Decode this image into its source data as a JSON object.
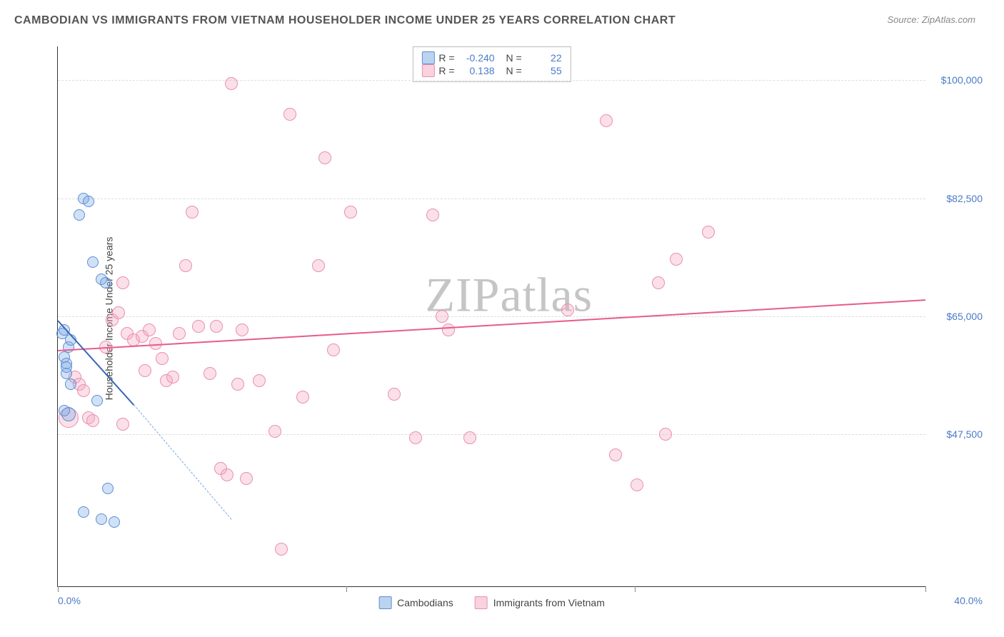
{
  "title": "CAMBODIAN VS IMMIGRANTS FROM VIETNAM HOUSEHOLDER INCOME UNDER 25 YEARS CORRELATION CHART",
  "source": "Source: ZipAtlas.com",
  "watermark": {
    "part1": "ZIP",
    "part2": "atlas"
  },
  "chart": {
    "type": "scatter",
    "ylabel": "Householder Income Under 25 years",
    "xlim": [
      0,
      40
    ],
    "ylim": [
      25000,
      105000
    ],
    "xtick_labels": {
      "min": "0.0%",
      "max": "40.0%"
    },
    "ytick_labels": [
      "$47,500",
      "$65,000",
      "$82,500",
      "$100,000"
    ],
    "ytick_values": [
      47500,
      65000,
      82500,
      100000
    ],
    "vtick_positions": [
      0,
      13.3,
      26.6,
      40
    ],
    "grid_color": "#dddddd",
    "background_color": "#ffffff",
    "axis_color": "#333333",
    "label_color": "#4a7bc8",
    "series": {
      "blue": {
        "label": "Cambodians",
        "fill": "rgba(122,168,226,0.35)",
        "stroke": "#5b8dd6",
        "trend_color": "#3966b8",
        "R": "-0.240",
        "N": "22",
        "trend": {
          "x1": 0,
          "y1": 64500,
          "x2": 3.5,
          "y2": 52000,
          "x2_ext": 8,
          "y2_ext": 35000
        },
        "points": [
          {
            "x": 0.2,
            "y": 62500,
            "r": 8
          },
          {
            "x": 0.3,
            "y": 59000,
            "r": 8
          },
          {
            "x": 0.4,
            "y": 58000,
            "r": 8
          },
          {
            "x": 0.4,
            "y": 56500,
            "r": 8
          },
          {
            "x": 0.6,
            "y": 55000,
            "r": 8
          },
          {
            "x": 0.5,
            "y": 50500,
            "r": 10
          },
          {
            "x": 1.2,
            "y": 82500,
            "r": 8
          },
          {
            "x": 1.4,
            "y": 82000,
            "r": 8
          },
          {
            "x": 1.0,
            "y": 80000,
            "r": 8
          },
          {
            "x": 1.6,
            "y": 73000,
            "r": 8
          },
          {
            "x": 2.0,
            "y": 70500,
            "r": 8
          },
          {
            "x": 2.2,
            "y": 70000,
            "r": 8
          },
          {
            "x": 1.8,
            "y": 52500,
            "r": 8
          },
          {
            "x": 0.5,
            "y": 60500,
            "r": 8
          },
          {
            "x": 2.3,
            "y": 39500,
            "r": 8
          },
          {
            "x": 1.2,
            "y": 36000,
            "r": 8
          },
          {
            "x": 2.0,
            "y": 35000,
            "r": 8
          },
          {
            "x": 2.6,
            "y": 34500,
            "r": 8
          },
          {
            "x": 0.3,
            "y": 51000,
            "r": 8
          },
          {
            "x": 0.6,
            "y": 61500,
            "r": 8
          },
          {
            "x": 0.4,
            "y": 57500,
            "r": 8
          },
          {
            "x": 0.3,
            "y": 63000,
            "r": 8
          }
        ]
      },
      "pink": {
        "label": "Immigrants from Vietnam",
        "fill": "rgba(244,166,188,0.35)",
        "stroke": "#ea8fb0",
        "trend_color": "#e85a8f",
        "R": "0.138",
        "N": "55",
        "trend": {
          "x1": 0,
          "y1": 60000,
          "x2": 40,
          "y2": 67500
        },
        "points": [
          {
            "x": 0.5,
            "y": 50000,
            "r": 14
          },
          {
            "x": 0.8,
            "y": 56000,
            "r": 9
          },
          {
            "x": 1.0,
            "y": 55000,
            "r": 9
          },
          {
            "x": 1.2,
            "y": 54000,
            "r": 9
          },
          {
            "x": 1.4,
            "y": 50000,
            "r": 9
          },
          {
            "x": 1.6,
            "y": 49500,
            "r": 9
          },
          {
            "x": 2.5,
            "y": 64500,
            "r": 9
          },
          {
            "x": 2.8,
            "y": 65500,
            "r": 9
          },
          {
            "x": 3.0,
            "y": 70000,
            "r": 9
          },
          {
            "x": 3.2,
            "y": 62500,
            "r": 9
          },
          {
            "x": 3.5,
            "y": 61500,
            "r": 9
          },
          {
            "x": 3.9,
            "y": 62000,
            "r": 9
          },
          {
            "x": 4.2,
            "y": 63000,
            "r": 9
          },
          {
            "x": 4.5,
            "y": 61000,
            "r": 9
          },
          {
            "x": 4.8,
            "y": 58800,
            "r": 9
          },
          {
            "x": 5.0,
            "y": 55500,
            "r": 9
          },
          {
            "x": 5.3,
            "y": 56000,
            "r": 9
          },
          {
            "x": 5.6,
            "y": 62500,
            "r": 9
          },
          {
            "x": 5.9,
            "y": 72500,
            "r": 9
          },
          {
            "x": 6.2,
            "y": 80500,
            "r": 9
          },
          {
            "x": 6.5,
            "y": 63500,
            "r": 9
          },
          {
            "x": 7.0,
            "y": 56500,
            "r": 9
          },
          {
            "x": 7.3,
            "y": 63500,
            "r": 9
          },
          {
            "x": 7.5,
            "y": 42500,
            "r": 9
          },
          {
            "x": 7.8,
            "y": 41500,
            "r": 9
          },
          {
            "x": 8.0,
            "y": 99500,
            "r": 9
          },
          {
            "x": 8.3,
            "y": 55000,
            "r": 9
          },
          {
            "x": 8.7,
            "y": 41000,
            "r": 9
          },
          {
            "x": 8.5,
            "y": 63000,
            "r": 9
          },
          {
            "x": 9.3,
            "y": 55500,
            "r": 9
          },
          {
            "x": 10.0,
            "y": 48000,
            "r": 9
          },
          {
            "x": 10.3,
            "y": 30500,
            "r": 9
          },
          {
            "x": 10.7,
            "y": 95000,
            "r": 9
          },
          {
            "x": 11.3,
            "y": 53000,
            "r": 9
          },
          {
            "x": 12.0,
            "y": 72500,
            "r": 9
          },
          {
            "x": 12.3,
            "y": 88500,
            "r": 9
          },
          {
            "x": 12.7,
            "y": 60000,
            "r": 9
          },
          {
            "x": 13.5,
            "y": 80500,
            "r": 9
          },
          {
            "x": 15.5,
            "y": 53500,
            "r": 9
          },
          {
            "x": 16.5,
            "y": 47000,
            "r": 9
          },
          {
            "x": 17.3,
            "y": 80000,
            "r": 9
          },
          {
            "x": 17.7,
            "y": 65000,
            "r": 9
          },
          {
            "x": 18.0,
            "y": 63000,
            "r": 9
          },
          {
            "x": 19.0,
            "y": 47000,
            "r": 9
          },
          {
            "x": 23.5,
            "y": 66000,
            "r": 9
          },
          {
            "x": 25.3,
            "y": 94000,
            "r": 9
          },
          {
            "x": 25.7,
            "y": 44500,
            "r": 9
          },
          {
            "x": 26.7,
            "y": 40000,
            "r": 9
          },
          {
            "x": 27.7,
            "y": 70000,
            "r": 9
          },
          {
            "x": 28.0,
            "y": 47500,
            "r": 9
          },
          {
            "x": 28.5,
            "y": 73500,
            "r": 9
          },
          {
            "x": 30.0,
            "y": 77500,
            "r": 9
          },
          {
            "x": 3.0,
            "y": 49000,
            "r": 9
          },
          {
            "x": 4.0,
            "y": 57000,
            "r": 9
          },
          {
            "x": 2.2,
            "y": 60500,
            "r": 9
          }
        ]
      }
    },
    "legend_top": [
      {
        "swatch": "blue",
        "r_label": "R =",
        "r_val": "-0.240",
        "n_label": "N =",
        "n_val": "22"
      },
      {
        "swatch": "pink",
        "r_label": "R =",
        "r_val": "0.138",
        "n_label": "N =",
        "n_val": "55"
      }
    ],
    "legend_bottom": [
      {
        "swatch": "blue",
        "label": "Cambodians"
      },
      {
        "swatch": "pink",
        "label": "Immigrants from Vietnam"
      }
    ]
  }
}
